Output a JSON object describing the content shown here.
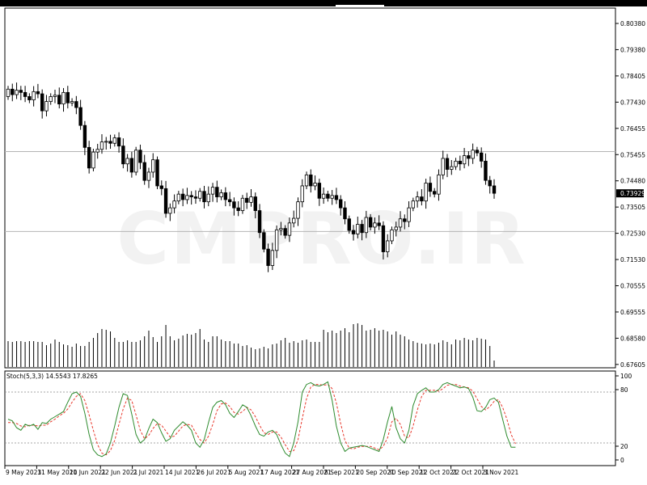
{
  "watermark": "CMPRO.IR",
  "chart_data": [
    {
      "type": "candlestick",
      "price_axis_ticks": [
        "0.80380",
        "0.79380",
        "0.78405",
        "0.77430",
        "0.76455",
        "0.75455",
        "0.74480",
        "0.73505",
        "0.72530",
        "0.71530",
        "0.70555",
        "0.69555",
        "0.68580",
        "0.67605"
      ],
      "ylim": [
        0.6758,
        0.8067
      ],
      "current_price_label": "0.73929",
      "current_price": 0.73929,
      "horizontal_levels": [
        0.7545,
        0.7254
      ],
      "x_labels": [
        "9 May 2021",
        "31 May 2021",
        "10 Jun 2021",
        "22 Jun 2021",
        "2 Jul 2021",
        "14 Jul 2021",
        "26 Jul 2021",
        "5 Aug 2021",
        "17 Aug 2021",
        "27 Aug 2021",
        "8 Sep 2021",
        "20 Sep 2021",
        "30 Sep 2021",
        "12 Oct 2021",
        "22 Oct 2021",
        "3 Nov 2021"
      ],
      "close": [
        0.7772,
        0.7752,
        0.7768,
        0.776,
        0.7745,
        0.7733,
        0.7763,
        0.7755,
        0.7693,
        0.7727,
        0.7745,
        0.775,
        0.7718,
        0.776,
        0.7722,
        0.7727,
        0.7705,
        0.764,
        0.756,
        0.7485,
        0.7543,
        0.7553,
        0.758,
        0.7582,
        0.7575,
        0.7595,
        0.7565,
        0.75,
        0.752,
        0.747,
        0.755,
        0.7505,
        0.744,
        0.747,
        0.7515,
        0.742,
        0.741,
        0.732,
        0.734,
        0.7365,
        0.739,
        0.737,
        0.7385,
        0.738,
        0.7375,
        0.74,
        0.7362,
        0.739,
        0.7415,
        0.738,
        0.7395,
        0.737,
        0.7362,
        0.734,
        0.733,
        0.7375,
        0.736,
        0.738,
        0.733,
        0.725,
        0.719,
        0.713,
        0.7185,
        0.726,
        0.7265,
        0.724,
        0.7285,
        0.7302,
        0.7362,
        0.742,
        0.746,
        0.742,
        0.743,
        0.7375,
        0.739,
        0.7375,
        0.7385,
        0.737,
        0.734,
        0.73,
        0.7258,
        0.7245,
        0.728,
        0.725,
        0.7305,
        0.727,
        0.7285,
        0.7275,
        0.718,
        0.722,
        0.726,
        0.727,
        0.73,
        0.729,
        0.734,
        0.7365,
        0.738,
        0.7365,
        0.743,
        0.74,
        0.739,
        0.746,
        0.752,
        0.748,
        0.749,
        0.751,
        0.75,
        0.753,
        0.752,
        0.755,
        0.754,
        0.751,
        0.744,
        0.742,
        0.7393
      ],
      "open": [
        0.7745,
        0.7772,
        0.7752,
        0.7768,
        0.776,
        0.7745,
        0.7733,
        0.7763,
        0.7755,
        0.7693,
        0.7727,
        0.7745,
        0.775,
        0.7718,
        0.776,
        0.7722,
        0.7727,
        0.7705,
        0.764,
        0.756,
        0.7485,
        0.7543,
        0.7553,
        0.758,
        0.7582,
        0.7575,
        0.7595,
        0.7565,
        0.75,
        0.752,
        0.747,
        0.755,
        0.7505,
        0.744,
        0.747,
        0.7515,
        0.742,
        0.741,
        0.732,
        0.734,
        0.7365,
        0.739,
        0.737,
        0.7385,
        0.738,
        0.7375,
        0.74,
        0.7362,
        0.739,
        0.7415,
        0.738,
        0.7395,
        0.737,
        0.7362,
        0.734,
        0.733,
        0.7375,
        0.736,
        0.738,
        0.733,
        0.725,
        0.719,
        0.713,
        0.7185,
        0.726,
        0.7265,
        0.724,
        0.7285,
        0.7302,
        0.7362,
        0.742,
        0.746,
        0.742,
        0.743,
        0.7375,
        0.739,
        0.7375,
        0.7385,
        0.737,
        0.734,
        0.73,
        0.7258,
        0.7245,
        0.728,
        0.725,
        0.7305,
        0.727,
        0.7285,
        0.7275,
        0.718,
        0.722,
        0.726,
        0.727,
        0.73,
        0.729,
        0.734,
        0.7365,
        0.738,
        0.7365,
        0.743,
        0.74,
        0.739,
        0.746,
        0.752,
        0.748,
        0.749,
        0.751,
        0.75,
        0.753,
        0.752,
        0.755,
        0.754,
        0.751,
        0.744,
        0.742
      ]
    },
    {
      "type": "bar",
      "name": "volume",
      "values": [
        32,
        31,
        32,
        32,
        31,
        32,
        32,
        31,
        31,
        27,
        29,
        34,
        31,
        28,
        27,
        25,
        29,
        26,
        26,
        31,
        36,
        42,
        47,
        46,
        44,
        36,
        31,
        31,
        33,
        31,
        31,
        33,
        38,
        45,
        37,
        31,
        38,
        52,
        38,
        33,
        35,
        39,
        41,
        40,
        42,
        47,
        34,
        31,
        38,
        38,
        34,
        32,
        32,
        29,
        29,
        26,
        27,
        24,
        22,
        23,
        25,
        23,
        28,
        29,
        33,
        36,
        30,
        32,
        30,
        33,
        34,
        31,
        31,
        31,
        46,
        43,
        45,
        42,
        45,
        48,
        43,
        53,
        54,
        52,
        45,
        46,
        48,
        45,
        46,
        44,
        40,
        44,
        40,
        38,
        34,
        32,
        30,
        29,
        28,
        29,
        28,
        30,
        33,
        31,
        28,
        34,
        33,
        36,
        34,
        33,
        36,
        35,
        34,
        26,
        8
      ]
    },
    {
      "type": "line",
      "name": "Stoch(5,3,3)",
      "label": "Stoch(5,3,3) 14.5543 17.8265",
      "ylim": [
        0,
        100
      ],
      "y_ticks": [
        "100",
        "80",
        "20",
        "0"
      ],
      "levels": [
        80,
        20
      ],
      "main": [
        48,
        46,
        38,
        35,
        42,
        40,
        42,
        36,
        44,
        43,
        48,
        51,
        54,
        57,
        68,
        78,
        80,
        75,
        55,
        30,
        12,
        6,
        4,
        7,
        20,
        40,
        62,
        78,
        76,
        54,
        30,
        20,
        24,
        37,
        48,
        44,
        32,
        22,
        25,
        35,
        40,
        45,
        41,
        35,
        20,
        15,
        24,
        44,
        62,
        68,
        70,
        65,
        55,
        50,
        57,
        65,
        62,
        52,
        40,
        30,
        28,
        33,
        35,
        30,
        18,
        8,
        4,
        20,
        45,
        80,
        89,
        91,
        88,
        87,
        89,
        92,
        70,
        40,
        20,
        10,
        14,
        15,
        16,
        17,
        16,
        14,
        12,
        10,
        24,
        45,
        63,
        38,
        25,
        20,
        35,
        64,
        78,
        82,
        85,
        80,
        80,
        83,
        89,
        91,
        89,
        87,
        85,
        86,
        84,
        74,
        58,
        57,
        62,
        71,
        73,
        68,
        48,
        28,
        15,
        15
      ],
      "signal": [
        44,
        44,
        43,
        40,
        39,
        41,
        41,
        40,
        41,
        41,
        45,
        48,
        52,
        55,
        60,
        68,
        75,
        78,
        70,
        53,
        35,
        18,
        8,
        6,
        11,
        23,
        42,
        60,
        73,
        70,
        53,
        35,
        25,
        29,
        37,
        43,
        41,
        34,
        27,
        28,
        34,
        40,
        42,
        41,
        32,
        24,
        20,
        28,
        42,
        58,
        66,
        67,
        63,
        56,
        54,
        57,
        62,
        59,
        51,
        41,
        32,
        30,
        33,
        33,
        27,
        18,
        10,
        11,
        24,
        49,
        72,
        86,
        89,
        89,
        88,
        89,
        84,
        67,
        43,
        23,
        14,
        13,
        15,
        16,
        16,
        16,
        14,
        12,
        16,
        26,
        45,
        49,
        42,
        28,
        26,
        40,
        59,
        75,
        82,
        82,
        82,
        81,
        84,
        88,
        89,
        89,
        87,
        86,
        85,
        81,
        72,
        63,
        59,
        63,
        69,
        71,
        62,
        48,
        30,
        19
      ]
    }
  ]
}
